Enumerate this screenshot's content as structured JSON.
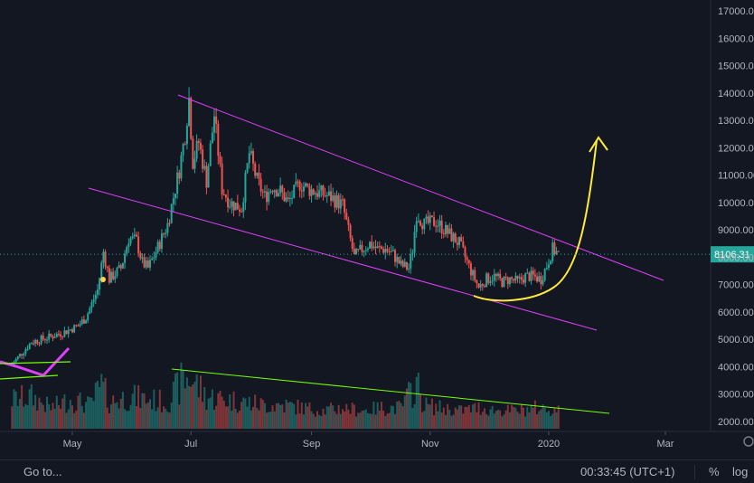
{
  "chart_data": {
    "type": "candlestick",
    "ylim": [
      1700,
      17400
    ],
    "y_ticks": [
      "17000.00",
      "16000.00",
      "15000.00",
      "14000.00",
      "13000.00",
      "12000.00",
      "11000.00",
      "10000.00",
      "9000.00",
      "8000.00",
      "7000.00",
      "6000.00",
      "5000.00",
      "4000.00",
      "3000.00",
      "2000.00"
    ],
    "y_tick_values": [
      17000,
      16000,
      15000,
      14000,
      13000,
      12000,
      11000,
      10000,
      9000,
      8000,
      7000,
      6000,
      5000,
      4000,
      3000,
      2000
    ],
    "x_ticks": [
      "May",
      "Jul",
      "Sep",
      "Nov",
      "2020",
      "Mar"
    ],
    "x_tick_days": [
      31,
      92,
      154,
      215,
      276,
      336
    ],
    "x_range_days": [
      0,
      380
    ],
    "last_price_label": "8106.31",
    "last_price": 8106.31,
    "price_path": [
      [
        0,
        4100
      ],
      [
        10,
        4900
      ],
      [
        20,
        5100
      ],
      [
        28,
        5300
      ],
      [
        34,
        5500
      ],
      [
        38,
        5800
      ],
      [
        44,
        6800
      ],
      [
        47,
        8200
      ],
      [
        50,
        7200
      ],
      [
        56,
        7600
      ],
      [
        60,
        8700
      ],
      [
        64,
        8600
      ],
      [
        67,
        7800
      ],
      [
        70,
        7600
      ],
      [
        74,
        8200
      ],
      [
        80,
        9200
      ],
      [
        86,
        11200
      ],
      [
        89,
        12500
      ],
      [
        91,
        13800
      ],
      [
        93,
        11500
      ],
      [
        96,
        12200
      ],
      [
        100,
        10800
      ],
      [
        104,
        13200
      ],
      [
        108,
        10500
      ],
      [
        112,
        10000
      ],
      [
        118,
        9800
      ],
      [
        122,
        11800
      ],
      [
        126,
        10800
      ],
      [
        130,
        10200
      ],
      [
        134,
        10600
      ],
      [
        138,
        10400
      ],
      [
        142,
        10000
      ],
      [
        148,
        10700
      ],
      [
        152,
        10500
      ],
      [
        156,
        10400
      ],
      [
        160,
        10300
      ],
      [
        164,
        10200
      ],
      [
        170,
        9900
      ],
      [
        176,
        8000
      ],
      [
        180,
        8300
      ],
      [
        184,
        8500
      ],
      [
        188,
        8300
      ],
      [
        192,
        8300
      ],
      [
        196,
        8100
      ],
      [
        200,
        7700
      ],
      [
        204,
        7600
      ],
      [
        206,
        8300
      ],
      [
        208,
        9600
      ],
      [
        212,
        9200
      ],
      [
        218,
        9300
      ],
      [
        224,
        8900
      ],
      [
        230,
        8500
      ],
      [
        236,
        7500
      ],
      [
        240,
        6900
      ],
      [
        244,
        7200
      ],
      [
        248,
        7300
      ],
      [
        252,
        7100
      ],
      [
        256,
        7200
      ],
      [
        260,
        7100
      ],
      [
        264,
        7300
      ],
      [
        268,
        7300
      ],
      [
        272,
        7200
      ],
      [
        275,
        7700
      ],
      [
        278,
        8300
      ],
      [
        281,
        8106
      ]
    ],
    "volume_path": [
      [
        0,
        2800
      ],
      [
        10,
        2900
      ],
      [
        20,
        2500
      ],
      [
        30,
        2800
      ],
      [
        40,
        2600
      ],
      [
        46,
        3300
      ],
      [
        50,
        2700
      ],
      [
        60,
        2900
      ],
      [
        70,
        2800
      ],
      [
        80,
        2700
      ],
      [
        88,
        3500
      ],
      [
        92,
        3600
      ],
      [
        100,
        2900
      ],
      [
        110,
        2800
      ],
      [
        120,
        2700
      ],
      [
        130,
        2600
      ],
      [
        140,
        2600
      ],
      [
        150,
        2500
      ],
      [
        160,
        2400
      ],
      [
        170,
        2500
      ],
      [
        180,
        2400
      ],
      [
        190,
        2500
      ],
      [
        200,
        2500
      ],
      [
        208,
        3400
      ],
      [
        212,
        2600
      ],
      [
        220,
        2500
      ],
      [
        230,
        2400
      ],
      [
        240,
        2500
      ],
      [
        250,
        2400
      ],
      [
        260,
        2400
      ],
      [
        270,
        2500
      ],
      [
        281,
        2400
      ]
    ],
    "colors": {
      "up": "#26a69a",
      "down": "#ef5350",
      "channel": "#e040fb",
      "trend": "#76ff03",
      "arrow": "#ffeb3b",
      "price_line": "#26a69a"
    }
  },
  "status_bar": {
    "goto_label": "Go to...",
    "clock": "00:33:45 (UTC+1)",
    "percent_label": "%",
    "log_label": "log"
  }
}
